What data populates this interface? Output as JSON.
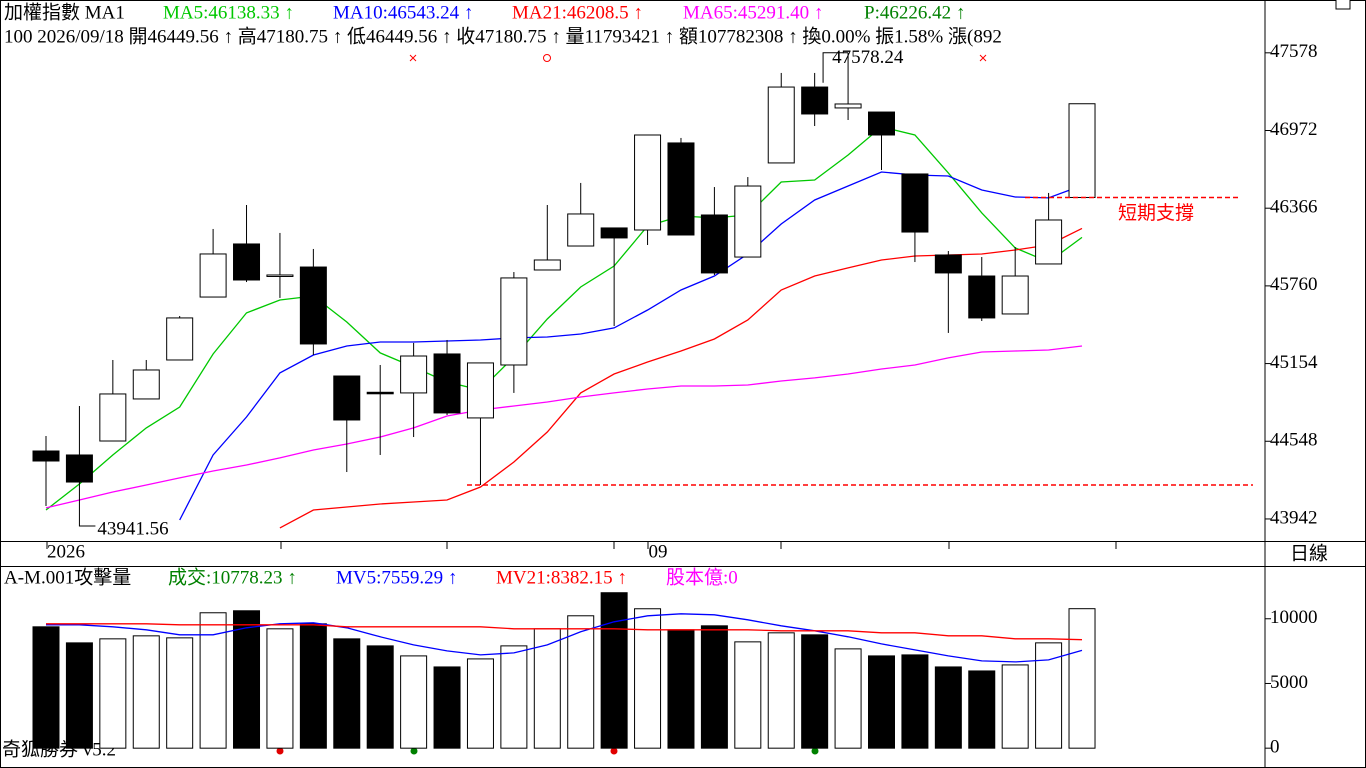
{
  "chart_data": [
    {
      "type": "candlestick",
      "title": "加權指數 MA1",
      "info": "100 2026/09/18 開46449.56 ↑ 高47180.75 ↑ 低46449.56 ↑ 收47180.75 ↑ 量11793421 ↑ 額107782308 ↑ 換0.00% 振1.58% 漲(892",
      "categories": [
        "2026",
        null,
        null,
        null,
        null,
        null,
        null,
        null,
        null,
        null,
        null,
        null,
        null,
        null,
        null,
        null,
        null,
        null,
        "09",
        null,
        null,
        null,
        null,
        null,
        null,
        null,
        null,
        null,
        null,
        null,
        null,
        null
      ],
      "open": [
        44472,
        44441,
        44550,
        44878,
        45182,
        45673,
        46087,
        45845,
        45907,
        45057,
        44930,
        44925,
        45229,
        44730,
        45143,
        45884,
        46071,
        46212,
        46196,
        46875,
        46313,
        45985,
        46719,
        47311,
        47148,
        47116,
        46633,
        46001,
        45837,
        45541,
        45931,
        46449.56
      ],
      "high": [
        44589,
        44823,
        45182,
        45182,
        45525,
        46204,
        46391,
        46173,
        46048,
        45057,
        45143,
        45315,
        45338,
        45159,
        45868,
        46391,
        46563,
        46212,
        46937,
        46914,
        46531,
        46609,
        47421,
        47421,
        47578.24,
        47116,
        46633,
        46032,
        45985,
        46063,
        46485,
        47180.75
      ],
      "low": [
        44043,
        43941.56,
        44550,
        44878,
        45182,
        45673,
        45790,
        45666,
        45221,
        44308,
        44441,
        44581,
        44753,
        44207,
        44925,
        45884,
        46071,
        45447,
        46079,
        46157,
        45845,
        45985,
        46719,
        47007,
        47054,
        46664,
        45946,
        45393,
        45486,
        45541,
        45931,
        46449.56
      ],
      "close": [
        44394,
        44230,
        44917,
        45104,
        45510,
        46009,
        45806,
        45845,
        45307,
        44714,
        44925,
        45213,
        44769,
        45159,
        45822,
        45962,
        46321,
        46134,
        46937,
        46157,
        45861,
        46539,
        47311,
        47101,
        47179,
        46937,
        46180,
        45861,
        45510,
        45837,
        46274,
        47180.75
      ],
      "up_color": "#ffffff",
      "down_color": "#000000",
      "series": [
        {
          "name": "MA5:46138.33 ↑",
          "color": "#00c800",
          "values": [
            44012,
            44215,
            44441,
            44652,
            44815,
            45229,
            45549,
            45650,
            45681,
            45478,
            45237,
            45127,
            45010,
            44948,
            45205,
            45502,
            45751,
            45915,
            46227,
            46305,
            46290,
            46313,
            46570,
            46586,
            46781,
            47000,
            46937,
            46641,
            46329,
            46056,
            45946,
            46138.33
          ]
        },
        {
          "name": "MA10:46543.24 ↑",
          "color": "#0000ff",
          "values": [
            null,
            null,
            null,
            null,
            43934,
            44441,
            44737,
            45081,
            45221,
            45291,
            45322,
            45322,
            45330,
            45338,
            45354,
            45361,
            45385,
            45432,
            45572,
            45728,
            45837,
            46009,
            46243,
            46430,
            46539,
            46648,
            46625,
            46617,
            46508,
            46453,
            46446,
            46543.24
          ]
        },
        {
          "name": "MA21:46208.5 ↑",
          "color": "#ff0000",
          "values": [
            null,
            null,
            null,
            null,
            null,
            null,
            null,
            43872,
            44012,
            44035,
            44059,
            44074,
            44090,
            44191,
            44386,
            44620,
            44925,
            45073,
            45166,
            45252,
            45346,
            45494,
            45728,
            45837,
            45900,
            45962,
            45993,
            46001,
            46009,
            46040,
            46079,
            46208.5
          ]
        },
        {
          "name": "MA65:45291.40 ↑",
          "color": "#ff00ff",
          "values": [
            44028,
            44090,
            44152,
            44207,
            44262,
            44316,
            44363,
            44418,
            44480,
            44527,
            44581,
            44652,
            44745,
            44792,
            44823,
            44854,
            44893,
            44925,
            44956,
            44979,
            44979,
            44987,
            45018,
            45042,
            45073,
            45112,
            45143,
            45198,
            45244,
            45252,
            45260,
            45291.4
          ]
        }
      ],
      "extra": {
        "text": "P:46226.42 ↑",
        "color": "#008000"
      },
      "support_lines": [
        {
          "label": "短期支撐",
          "value": 46449.56,
          "color": "#ff0000"
        },
        {
          "value": 44207,
          "color": "#ff0000"
        }
      ],
      "ylim": [
        43770,
        47990
      ],
      "yticks": [
        47578,
        46972,
        46366,
        45760,
        45154,
        44548,
        43942
      ],
      "period": "日線",
      "footer": "奇狐勝券 v5.2"
    },
    {
      "type": "volume",
      "title": "A-M.001攻擊量",
      "name": "成交:10778.23 ↑",
      "name_color": "#008000",
      "values": [
        9378,
        8138,
        8448,
        8680,
        8525,
        10463,
        10618,
        9223,
        9610,
        8448,
        7905,
        7130,
        6278,
        6898,
        7905,
        9223,
        10230,
        12013,
        10773,
        9145,
        9455,
        8215,
        8913,
        8758,
        7673,
        7130,
        7208,
        6278,
        5968,
        6433,
        8138,
        10778.23
      ],
      "series": [
        {
          "name": "MV5:7559.29 ↑",
          "color": "#0000ff",
          "values": [
            9533,
            9533,
            9378,
            9145,
            8758,
            8758,
            9300,
            9610,
            9688,
            9300,
            8603,
            7983,
            7518,
            7208,
            7363,
            7983,
            8990,
            9765,
            10230,
            10385,
            10308,
            9920,
            9455,
            9068,
            8603,
            8060,
            7595,
            7130,
            6743,
            6665,
            6820,
            7559.29
          ]
        },
        {
          "name": "MV21:8382.15 ↑",
          "color": "#ff0000",
          "values": [
            9610,
            9610,
            9610,
            9610,
            9533,
            9533,
            9533,
            9533,
            9533,
            9378,
            9378,
            9378,
            9378,
            9378,
            9223,
            9223,
            9223,
            9223,
            9145,
            9145,
            9145,
            9145,
            9068,
            9068,
            9068,
            8913,
            8913,
            8680,
            8680,
            8448,
            8448,
            8382.15
          ]
        }
      ],
      "extra": {
        "text": "股本億:0",
        "color": "#ff00ff"
      },
      "ylim": [
        -1300,
        14000
      ],
      "yticks": [
        10000,
        5000,
        0
      ]
    }
  ]
}
